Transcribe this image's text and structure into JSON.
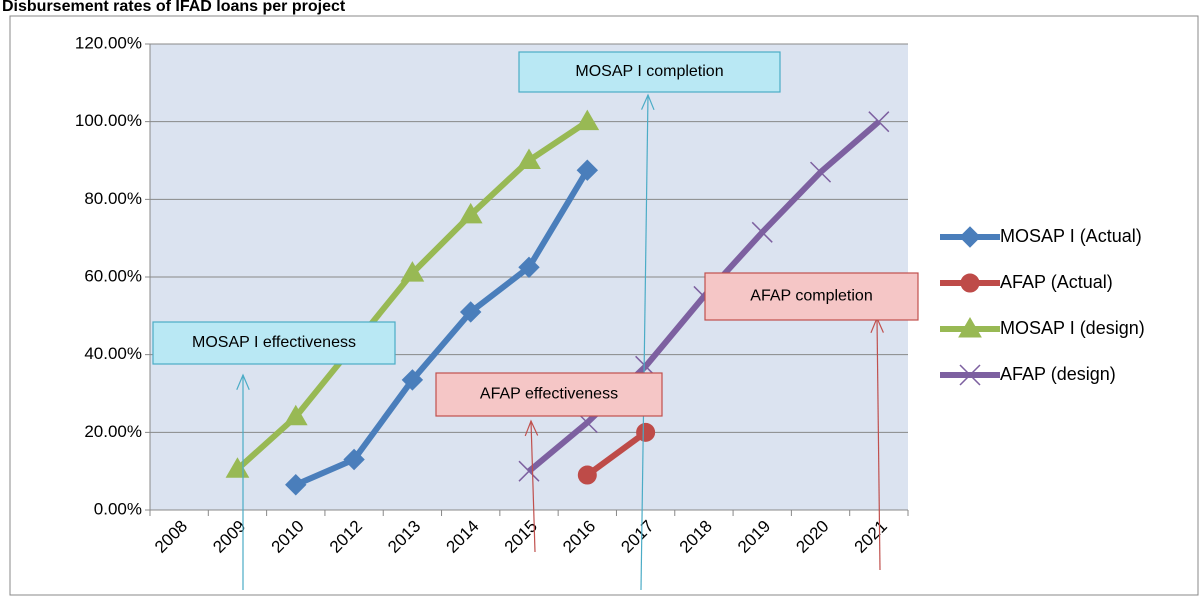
{
  "chart_data": {
    "type": "line",
    "title": "Disbursement rates of IFAD loans per project",
    "categories": [
      "2008",
      "2009",
      "2010",
      "2012",
      "2013",
      "2014",
      "2015",
      "2016",
      "2017",
      "2018",
      "2019",
      "2020",
      "2021"
    ],
    "series": [
      {
        "name": "MOSAP I (Actual)",
        "color": "#4a7ebb",
        "marker": "diamond",
        "values": [
          null,
          null,
          6.5,
          13,
          33.5,
          51,
          62.5,
          87.5,
          null,
          null,
          null,
          null,
          null
        ]
      },
      {
        "name": "AFAP (Actual)",
        "color": "#be4b48",
        "marker": "circle",
        "values": [
          null,
          null,
          null,
          null,
          null,
          null,
          null,
          9,
          20,
          null,
          null,
          null,
          null
        ]
      },
      {
        "name": "MOSAP I (design)",
        "color": "#98b954",
        "marker": "triangle",
        "values": [
          null,
          10.5,
          24,
          42.5,
          61,
          76,
          90,
          100,
          null,
          null,
          null,
          null,
          null
        ]
      },
      {
        "name": "AFAP (design)",
        "color": "#7d60a0",
        "marker": "x",
        "values": [
          null,
          null,
          null,
          null,
          null,
          null,
          10,
          22.5,
          37,
          55,
          71.5,
          87,
          100
        ]
      }
    ],
    "ylim": [
      0,
      120
    ],
    "yticks": [
      {
        "value": 0,
        "label": "0.00%"
      },
      {
        "value": 20,
        "label": "20.00%"
      },
      {
        "value": 40,
        "label": "40.00%"
      },
      {
        "value": 60,
        "label": "60.00%"
      },
      {
        "value": 80,
        "label": "80.00%"
      },
      {
        "value": 100,
        "label": "100.00%"
      },
      {
        "value": 120,
        "label": "120.00%"
      }
    ],
    "grid": true,
    "legend": "right",
    "annotations": [
      "MOSAP I completion",
      "MOSAP I effectiveness",
      "AFAP effectiveness",
      "AFAP completion"
    ]
  }
}
